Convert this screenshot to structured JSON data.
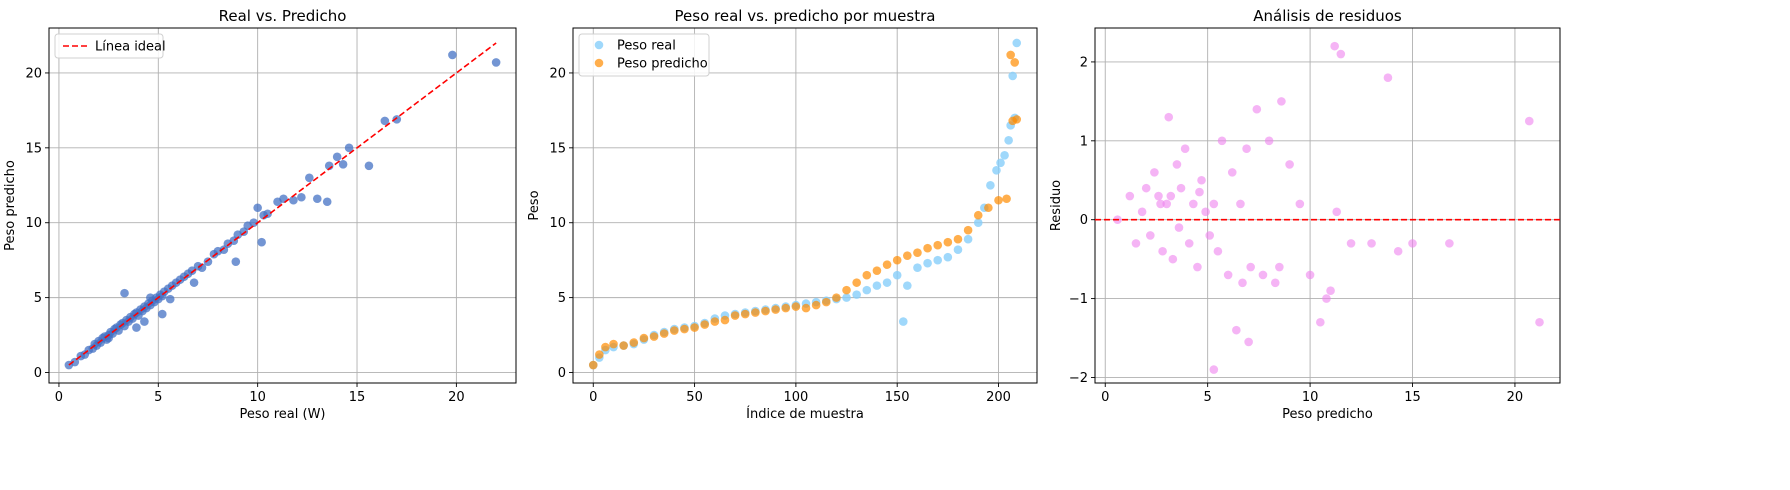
{
  "chart_data": [
    {
      "type": "scatter",
      "title": "Real vs. Predicho",
      "xlabel": "Peso real (W)",
      "ylabel": "Peso predicho",
      "xlim": [
        -0.5,
        23.0
      ],
      "ylim": [
        -0.7,
        23.0
      ],
      "xticks": [
        0,
        5,
        10,
        15,
        20
      ],
      "yticks": [
        0,
        5,
        10,
        15,
        20
      ],
      "grid": true,
      "legend": "top-left",
      "colors": {
        "points": "#4472c4",
        "ideal": "#ff0000"
      },
      "ideal_line": {
        "name": "Línea ideal",
        "from": [
          0.5,
          0.5
        ],
        "to": [
          22.0,
          22.0
        ]
      },
      "series": [
        {
          "x": [
            0.5,
            0.8,
            1.1,
            1.3,
            1.5,
            1.7,
            1.8,
            1.9,
            2.0,
            2.1,
            2.2,
            2.3,
            2.4,
            2.5,
            2.6,
            2.7,
            2.8,
            2.9,
            3.0,
            3.1,
            3.2,
            3.3,
            3.4,
            3.5,
            3.6,
            3.7,
            3.8,
            3.9,
            4.0,
            4.1,
            4.2,
            4.3,
            4.4,
            4.5,
            4.6,
            4.7,
            4.8,
            4.9,
            5.0,
            5.1,
            5.2,
            5.3,
            5.5,
            5.7,
            5.9,
            6.1,
            6.3,
            6.5,
            6.7,
            7.0,
            7.2,
            7.5,
            7.8,
            8.0,
            8.3,
            8.5,
            8.8,
            9.0,
            9.3,
            9.5,
            9.8,
            10.0,
            10.3,
            10.5,
            11.0,
            11.3,
            11.8,
            12.2,
            12.6,
            13.0,
            13.5,
            14.0,
            14.3,
            14.6,
            15.6,
            16.4,
            17.0,
            19.8,
            22.0,
            3.3,
            5.2,
            4.3,
            2.5,
            3.9,
            6.8,
            8.9,
            10.2,
            13.6,
            4.6,
            5.6
          ],
          "y": [
            0.5,
            0.7,
            1.1,
            1.2,
            1.5,
            1.6,
            1.9,
            1.8,
            2.1,
            2.0,
            2.3,
            2.4,
            2.2,
            2.5,
            2.7,
            2.6,
            2.9,
            3.0,
            2.8,
            3.2,
            3.3,
            3.1,
            3.5,
            3.4,
            3.7,
            3.6,
            3.9,
            4.0,
            3.8,
            4.2,
            4.1,
            4.4,
            4.3,
            4.6,
            4.5,
            4.8,
            4.7,
            5.0,
            4.9,
            5.2,
            5.1,
            5.4,
            5.6,
            5.8,
            6.0,
            6.2,
            6.4,
            6.6,
            6.8,
            7.1,
            7.0,
            7.4,
            7.9,
            8.1,
            8.2,
            8.6,
            8.8,
            9.2,
            9.4,
            9.8,
            10.0,
            11.0,
            10.5,
            10.6,
            11.4,
            11.6,
            11.5,
            11.7,
            13.0,
            11.6,
            11.4,
            14.4,
            13.9,
            15.0,
            13.8,
            16.8,
            16.9,
            21.2,
            20.7,
            5.3,
            3.9,
            3.4,
            2.3,
            3.0,
            6.0,
            7.4,
            8.7,
            13.8,
            5.0,
            4.9
          ]
        }
      ]
    },
    {
      "type": "scatter",
      "title": "Peso real vs. predicho por muestra",
      "xlabel": "Índice de muestra",
      "ylabel": "Peso",
      "xlim": [
        -10,
        219
      ],
      "ylim": [
        -0.7,
        23.0
      ],
      "xticks": [
        0,
        50,
        100,
        150,
        200
      ],
      "yticks": [
        0,
        5,
        10,
        15,
        20
      ],
      "grid": true,
      "legend": "top-left",
      "series": [
        {
          "name": "Peso real",
          "color": "#87cefa",
          "x": [
            0,
            3,
            6,
            10,
            15,
            20,
            25,
            30,
            35,
            40,
            45,
            50,
            55,
            60,
            65,
            70,
            75,
            80,
            85,
            90,
            95,
            100,
            105,
            110,
            115,
            120,
            125,
            130,
            135,
            140,
            145,
            150,
            153,
            155,
            160,
            165,
            170,
            175,
            180,
            185,
            190,
            193,
            196,
            199,
            201,
            203,
            205,
            206,
            207,
            208,
            209
          ],
          "y": [
            0.5,
            1.0,
            1.5,
            1.7,
            1.8,
            1.9,
            2.2,
            2.5,
            2.7,
            2.9,
            3.0,
            3.1,
            3.3,
            3.6,
            3.8,
            3.9,
            4.0,
            4.1,
            4.2,
            4.3,
            4.4,
            4.5,
            4.6,
            4.7,
            4.8,
            4.9,
            5.0,
            5.2,
            5.5,
            5.8,
            6.0,
            6.5,
            3.4,
            5.8,
            7.0,
            7.3,
            7.5,
            7.7,
            8.2,
            8.9,
            10.0,
            11.0,
            12.5,
            13.5,
            14.0,
            14.5,
            15.5,
            16.5,
            19.8,
            17.0,
            22.0
          ]
        },
        {
          "name": "Peso predicho",
          "color": "#ff8c00",
          "x": [
            0,
            3,
            6,
            10,
            15,
            20,
            25,
            30,
            35,
            40,
            45,
            50,
            55,
            60,
            65,
            70,
            75,
            80,
            85,
            90,
            95,
            100,
            105,
            110,
            115,
            120,
            125,
            130,
            135,
            140,
            145,
            150,
            155,
            160,
            165,
            170,
            175,
            180,
            185,
            190,
            195,
            200,
            204,
            206,
            207,
            208,
            209
          ],
          "y": [
            0.5,
            1.2,
            1.7,
            1.9,
            1.8,
            2.0,
            2.3,
            2.4,
            2.6,
            2.8,
            2.9,
            3.0,
            3.2,
            3.4,
            3.5,
            3.8,
            3.9,
            4.0,
            4.1,
            4.2,
            4.3,
            4.4,
            4.3,
            4.5,
            4.7,
            5.0,
            5.5,
            6.0,
            6.5,
            6.8,
            7.2,
            7.5,
            7.8,
            8.0,
            8.3,
            8.5,
            8.7,
            8.9,
            9.5,
            10.5,
            11.0,
            11.5,
            11.6,
            21.2,
            16.8,
            20.7,
            16.9
          ]
        }
      ]
    },
    {
      "type": "scatter",
      "title": "Análisis de residuos",
      "xlabel": "Peso predicho",
      "ylabel": "Residuo",
      "xlim": [
        -0.5,
        22.2
      ],
      "ylim": [
        -2.07,
        2.43
      ],
      "xticks": [
        0,
        5,
        10,
        15,
        20
      ],
      "yticks": [
        -2,
        -1,
        0,
        1,
        2
      ],
      "yticklabels": [
        "−2",
        "−1",
        "0",
        "1",
        "2"
      ],
      "grid": true,
      "colors": {
        "points": "#ee82ee",
        "zero_line": "#ff0000"
      },
      "zero_line": 0,
      "series": [
        {
          "x": [
            0.6,
            1.2,
            1.5,
            1.8,
            2.0,
            2.2,
            2.4,
            2.6,
            2.8,
            3.0,
            3.1,
            3.3,
            3.5,
            3.7,
            3.9,
            4.1,
            4.3,
            4.5,
            4.7,
            4.9,
            5.1,
            5.3,
            5.5,
            5.7,
            6.0,
            6.2,
            6.4,
            6.6,
            6.9,
            7.1,
            7.4,
            7.7,
            8.0,
            8.3,
            8.6,
            9.0,
            9.5,
            10.0,
            10.5,
            11.0,
            11.2,
            11.5,
            12.0,
            13.0,
            13.8,
            14.3,
            15.0,
            16.8,
            20.7,
            21.2,
            3.2,
            5.3,
            7.0,
            11.3,
            6.7,
            8.5,
            10.8,
            4.6,
            2.7,
            3.6
          ],
          "y": [
            0.0,
            0.3,
            -0.3,
            0.1,
            0.4,
            -0.2,
            0.6,
            0.3,
            -0.4,
            0.2,
            1.3,
            -0.5,
            0.7,
            0.4,
            0.9,
            -0.3,
            0.2,
            -0.6,
            0.5,
            0.1,
            -0.2,
            0.2,
            -0.4,
            1.0,
            -0.7,
            0.6,
            -1.4,
            0.2,
            0.9,
            -0.6,
            1.4,
            -0.7,
            1.0,
            -0.8,
            1.5,
            0.7,
            0.2,
            -0.7,
            -1.3,
            -0.9,
            2.2,
            2.1,
            -0.3,
            -0.3,
            1.8,
            -0.4,
            -0.3,
            -0.3,
            1.25,
            -1.3,
            0.3,
            -1.9,
            -1.55,
            0.1,
            -0.8,
            -0.6,
            -1.0,
            0.35,
            0.2,
            -0.1
          ]
        }
      ]
    }
  ]
}
